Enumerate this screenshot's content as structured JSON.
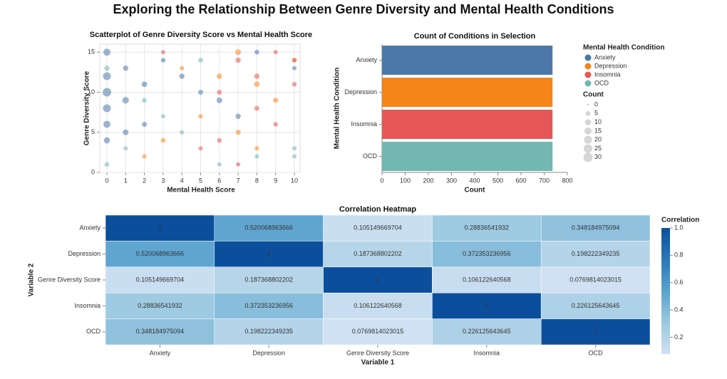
{
  "title": "Exploring the Relationship Between Genre Diversity and Mental Health Conditions",
  "chart_data": [
    {
      "type": "scatter",
      "title": "Scatterplot of Genre Diversity Score vs Mental Health Score",
      "x_label": "Mental Health Score",
      "y_label": "Genre Diversity Score",
      "xlim": [
        0,
        10
      ],
      "ylim": [
        0,
        16
      ],
      "xticks": [
        0,
        1,
        2,
        3,
        4,
        5,
        6,
        7,
        8,
        9,
        10
      ],
      "yticks": [
        0,
        5,
        10,
        15
      ],
      "grid": true,
      "legend_title": "Mental Health Condition",
      "size_legend_title": "Count",
      "size_legend_values": [
        0,
        5,
        10,
        15,
        20,
        25,
        30
      ],
      "series": [
        {
          "name": "Anxiety",
          "color": "#4c78a8",
          "x": [
            0,
            0,
            0,
            0,
            0,
            0,
            1,
            1,
            1,
            2,
            2,
            3,
            4,
            5,
            6,
            7,
            8,
            10
          ],
          "y": [
            4,
            6,
            8,
            10,
            12,
            15,
            5,
            9,
            13,
            6,
            11,
            14,
            12,
            10,
            9,
            7,
            15,
            13
          ],
          "size": [
            10,
            15,
            20,
            25,
            20,
            15,
            8,
            12,
            6,
            5,
            7,
            4,
            6,
            5,
            8,
            6,
            4,
            3
          ]
        },
        {
          "name": "Depression",
          "color": "#f58518",
          "x": [
            2,
            3,
            4,
            5,
            6,
            7,
            8,
            9,
            10,
            7,
            8
          ],
          "y": [
            2,
            4,
            13,
            7,
            12,
            15,
            11,
            9,
            14,
            5,
            3
          ],
          "size": [
            3,
            4,
            3,
            3,
            6,
            8,
            7,
            5,
            4,
            5,
            3
          ]
        },
        {
          "name": "Insomnia",
          "color": "#e45756",
          "x": [
            3,
            5,
            6,
            7,
            8,
            9,
            10,
            9,
            6,
            7,
            8,
            10
          ],
          "y": [
            15,
            3,
            10,
            14,
            12,
            6,
            11,
            15,
            4,
            1,
            8,
            14
          ],
          "size": [
            3,
            3,
            5,
            6,
            6,
            4,
            4,
            3,
            4,
            3,
            5,
            3
          ]
        },
        {
          "name": "OCD",
          "color": "#72b7b2",
          "x": [
            0,
            1,
            2,
            3,
            4,
            5,
            6,
            8,
            10,
            0,
            10
          ],
          "y": [
            1,
            3,
            9,
            7,
            5,
            14,
            1,
            2,
            2,
            13,
            3
          ],
          "size": [
            4,
            3,
            4,
            3,
            3,
            5,
            3,
            3,
            3,
            6,
            3
          ]
        }
      ]
    },
    {
      "type": "hbar",
      "title": "Count of Conditions in Selection",
      "x_label": "Count",
      "y_label": "Mental Health Condition",
      "categories": [
        "Anxiety",
        "Depression",
        "Insomnia",
        "OCD"
      ],
      "values": [
        736,
        736,
        736,
        736
      ],
      "colors": [
        "#4c78a8",
        "#f58518",
        "#e45756",
        "#72b7b2"
      ],
      "xlim": [
        0,
        800
      ],
      "xticks": [
        0,
        100,
        200,
        300,
        400,
        500,
        600,
        700,
        800
      ]
    },
    {
      "type": "heatmap",
      "title": "Correlation Heatmap",
      "x_label": "Variable 1",
      "y_label": "Variable 2",
      "x_categories": [
        "Anxiety",
        "Depression",
        "Genre Diversity Score",
        "Insomnia",
        "OCD"
      ],
      "y_categories": [
        "Anxiety",
        "Depression",
        "Genre Diversity Score",
        "Insomnia",
        "OCD"
      ],
      "matrix": [
        [
          1,
          0.520068963666,
          0.105149669704,
          0.28836541932,
          0.348184975094
        ],
        [
          0.520068963666,
          1,
          0.187368802202,
          0.372353236956,
          0.198222349235
        ],
        [
          0.105149669704,
          0.187368802202,
          1,
          0.106122640568,
          0.0769814023015
        ],
        [
          0.28836541932,
          0.372353236956,
          0.106122640568,
          1,
          0.226125643645
        ],
        [
          0.348184975094,
          0.198222349235,
          0.0769814023015,
          0.226125643645,
          1
        ]
      ],
      "colorbar_title": "Correlation",
      "clim": [
        0.0769814023015,
        1
      ],
      "cticks": [
        {
          "value": 1,
          "label": "1.0"
        },
        0.8,
        0.6,
        0.4,
        0.2
      ],
      "colorscale": [
        "#cfe1f2",
        "#9ac8e0",
        "#5aa2cf",
        "#2a77b9",
        "#0b4f9c"
      ]
    }
  ]
}
